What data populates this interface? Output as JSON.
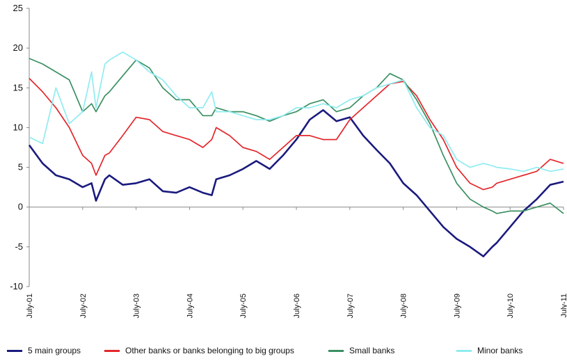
{
  "chart_data": {
    "type": "line",
    "title": "",
    "xlabel": "",
    "ylabel": "",
    "ylim": [
      -10,
      25
    ],
    "yticks": [
      -10,
      -5,
      0,
      5,
      10,
      15,
      20,
      25
    ],
    "x_start": "July-01",
    "x_tick_labels": [
      "July-01",
      "July-02",
      "July-03",
      "July-04",
      "July-05",
      "July-06",
      "July-07",
      "July-08",
      "July-09",
      "July-10",
      "July-11"
    ],
    "grid": false,
    "legend_position": "bottom",
    "series": [
      {
        "name": "5 main groups",
        "color": "#1a1a7e",
        "x": [
          "July-01",
          "Oct-01",
          "Jan-02",
          "Apr-02",
          "Jul-02",
          "Sep-02",
          "Oct-02",
          "Dec-02",
          "Jan-03",
          "Apr-03",
          "Jul-03",
          "Oct-03",
          "Jan-04",
          "Apr-04",
          "Jul-04",
          "Oct-04",
          "Dec-04",
          "Jan-05",
          "Apr-05",
          "Jul-05",
          "Oct-05",
          "Jan-06",
          "Apr-06",
          "Jul-06",
          "Oct-06",
          "Jan-07",
          "Apr-07",
          "Jul-07",
          "Oct-07",
          "Jan-08",
          "Apr-08",
          "Jul-08",
          "Oct-08",
          "Jan-09",
          "Apr-09",
          "Jul-09",
          "Oct-09",
          "Jan-10",
          "Mar-10",
          "Apr-10",
          "Jul-10",
          "Oct-10",
          "Jan-11",
          "Apr-11",
          "Jul-11"
        ],
        "values": [
          7.8,
          5.5,
          4.0,
          3.5,
          2.5,
          3.0,
          0.8,
          3.5,
          4.0,
          2.8,
          3.0,
          3.5,
          2.0,
          1.8,
          2.5,
          1.8,
          1.5,
          3.5,
          4.0,
          4.8,
          5.8,
          4.8,
          6.5,
          8.5,
          11.0,
          12.2,
          10.8,
          11.3,
          9.0,
          7.2,
          5.5,
          3.0,
          1.5,
          -0.5,
          -2.5,
          -4.0,
          -5.0,
          -6.2,
          -5.0,
          -4.5,
          -2.5,
          -0.5,
          1.0,
          2.8,
          3.2
        ]
      },
      {
        "name": "Other banks or banks belonging to big groups",
        "color": "#e3262b",
        "x": [
          "July-01",
          "Oct-01",
          "Jan-02",
          "Apr-02",
          "Jul-02",
          "Sep-02",
          "Oct-02",
          "Dec-02",
          "Jan-03",
          "Apr-03",
          "Jul-03",
          "Oct-03",
          "Jan-04",
          "Apr-04",
          "Jul-04",
          "Oct-04",
          "Dec-04",
          "Jan-05",
          "Apr-05",
          "Jul-05",
          "Oct-05",
          "Jan-06",
          "Apr-06",
          "Jul-06",
          "Oct-06",
          "Jan-07",
          "Apr-07",
          "Jul-07",
          "Oct-07",
          "Jan-08",
          "Apr-08",
          "Jul-08",
          "Oct-08",
          "Jan-09",
          "Apr-09",
          "Jul-09",
          "Oct-09",
          "Jan-10",
          "Mar-10",
          "Apr-10",
          "Jul-10",
          "Oct-10",
          "Jan-11",
          "Apr-11",
          "Jul-11"
        ],
        "values": [
          16.2,
          14.5,
          12.5,
          10.0,
          6.5,
          5.5,
          4.0,
          6.5,
          6.8,
          9.0,
          11.3,
          11.0,
          9.5,
          9.0,
          8.5,
          7.5,
          8.5,
          10.0,
          9.0,
          7.5,
          7.0,
          6.0,
          7.5,
          9.0,
          9.0,
          8.5,
          8.5,
          11.0,
          12.5,
          14.0,
          15.5,
          15.8,
          14.0,
          11.0,
          8.5,
          5.0,
          3.0,
          2.2,
          2.5,
          3.0,
          3.5,
          4.0,
          4.5,
          6.0,
          5.5
        ]
      },
      {
        "name": "Small banks",
        "color": "#3a8f62",
        "x": [
          "July-01",
          "Oct-01",
          "Jan-02",
          "Apr-02",
          "Jul-02",
          "Sep-02",
          "Oct-02",
          "Dec-02",
          "Jan-03",
          "Apr-03",
          "Jul-03",
          "Oct-03",
          "Jan-04",
          "Apr-04",
          "Jul-04",
          "Oct-04",
          "Dec-04",
          "Jan-05",
          "Apr-05",
          "Jul-05",
          "Oct-05",
          "Jan-06",
          "Apr-06",
          "Jul-06",
          "Oct-06",
          "Jan-07",
          "Apr-07",
          "Jul-07",
          "Oct-07",
          "Jan-08",
          "Apr-08",
          "Jul-08",
          "Oct-08",
          "Jan-09",
          "Apr-09",
          "Jul-09",
          "Oct-09",
          "Jan-10",
          "Mar-10",
          "Apr-10",
          "Jul-10",
          "Oct-10",
          "Jan-11",
          "Apr-11",
          "Jul-11"
        ],
        "values": [
          18.7,
          18.0,
          17.0,
          16.0,
          12.0,
          13.0,
          12.0,
          14.0,
          14.5,
          16.5,
          18.5,
          17.5,
          15.0,
          13.5,
          13.5,
          11.5,
          11.5,
          12.5,
          12.0,
          12.0,
          11.5,
          10.8,
          11.5,
          12.0,
          13.0,
          13.5,
          12.0,
          12.5,
          14.0,
          15.0,
          16.8,
          16.0,
          13.5,
          10.5,
          6.5,
          3.0,
          1.0,
          0.0,
          -0.5,
          -0.8,
          -0.5,
          -0.5,
          0.0,
          0.5,
          -0.8
        ]
      },
      {
        "name": "Minor banks",
        "color": "#8fecf0",
        "x": [
          "July-01",
          "Oct-01",
          "Jan-02",
          "Apr-02",
          "Jul-02",
          "Sep-02",
          "Oct-02",
          "Dec-02",
          "Jan-03",
          "Apr-03",
          "Jul-03",
          "Oct-03",
          "Jan-04",
          "Apr-04",
          "Jul-04",
          "Oct-04",
          "Dec-04",
          "Jan-05",
          "Apr-05",
          "Jul-05",
          "Oct-05",
          "Jan-06",
          "Apr-06",
          "Jul-06",
          "Oct-06",
          "Jan-07",
          "Apr-07",
          "Jul-07",
          "Oct-07",
          "Jan-08",
          "Apr-08",
          "Jul-08",
          "Oct-08",
          "Jan-09",
          "Apr-09",
          "Jul-09",
          "Oct-09",
          "Jan-10",
          "Mar-10",
          "Apr-10",
          "Jul-10",
          "Oct-10",
          "Jan-11",
          "Apr-11",
          "Jul-11"
        ],
        "values": [
          8.8,
          8.0,
          15.0,
          10.5,
          12.0,
          17.0,
          12.5,
          18.0,
          18.5,
          19.5,
          18.5,
          17.0,
          16.0,
          14.0,
          12.5,
          12.5,
          14.5,
          12.0,
          12.0,
          11.5,
          11.0,
          11.0,
          11.5,
          12.5,
          12.5,
          13.0,
          12.5,
          13.5,
          14.0,
          15.0,
          15.5,
          16.0,
          12.5,
          10.0,
          9.0,
          6.0,
          5.0,
          5.5,
          5.2,
          5.0,
          4.8,
          4.5,
          5.0,
          4.5,
          4.8
        ]
      }
    ]
  }
}
